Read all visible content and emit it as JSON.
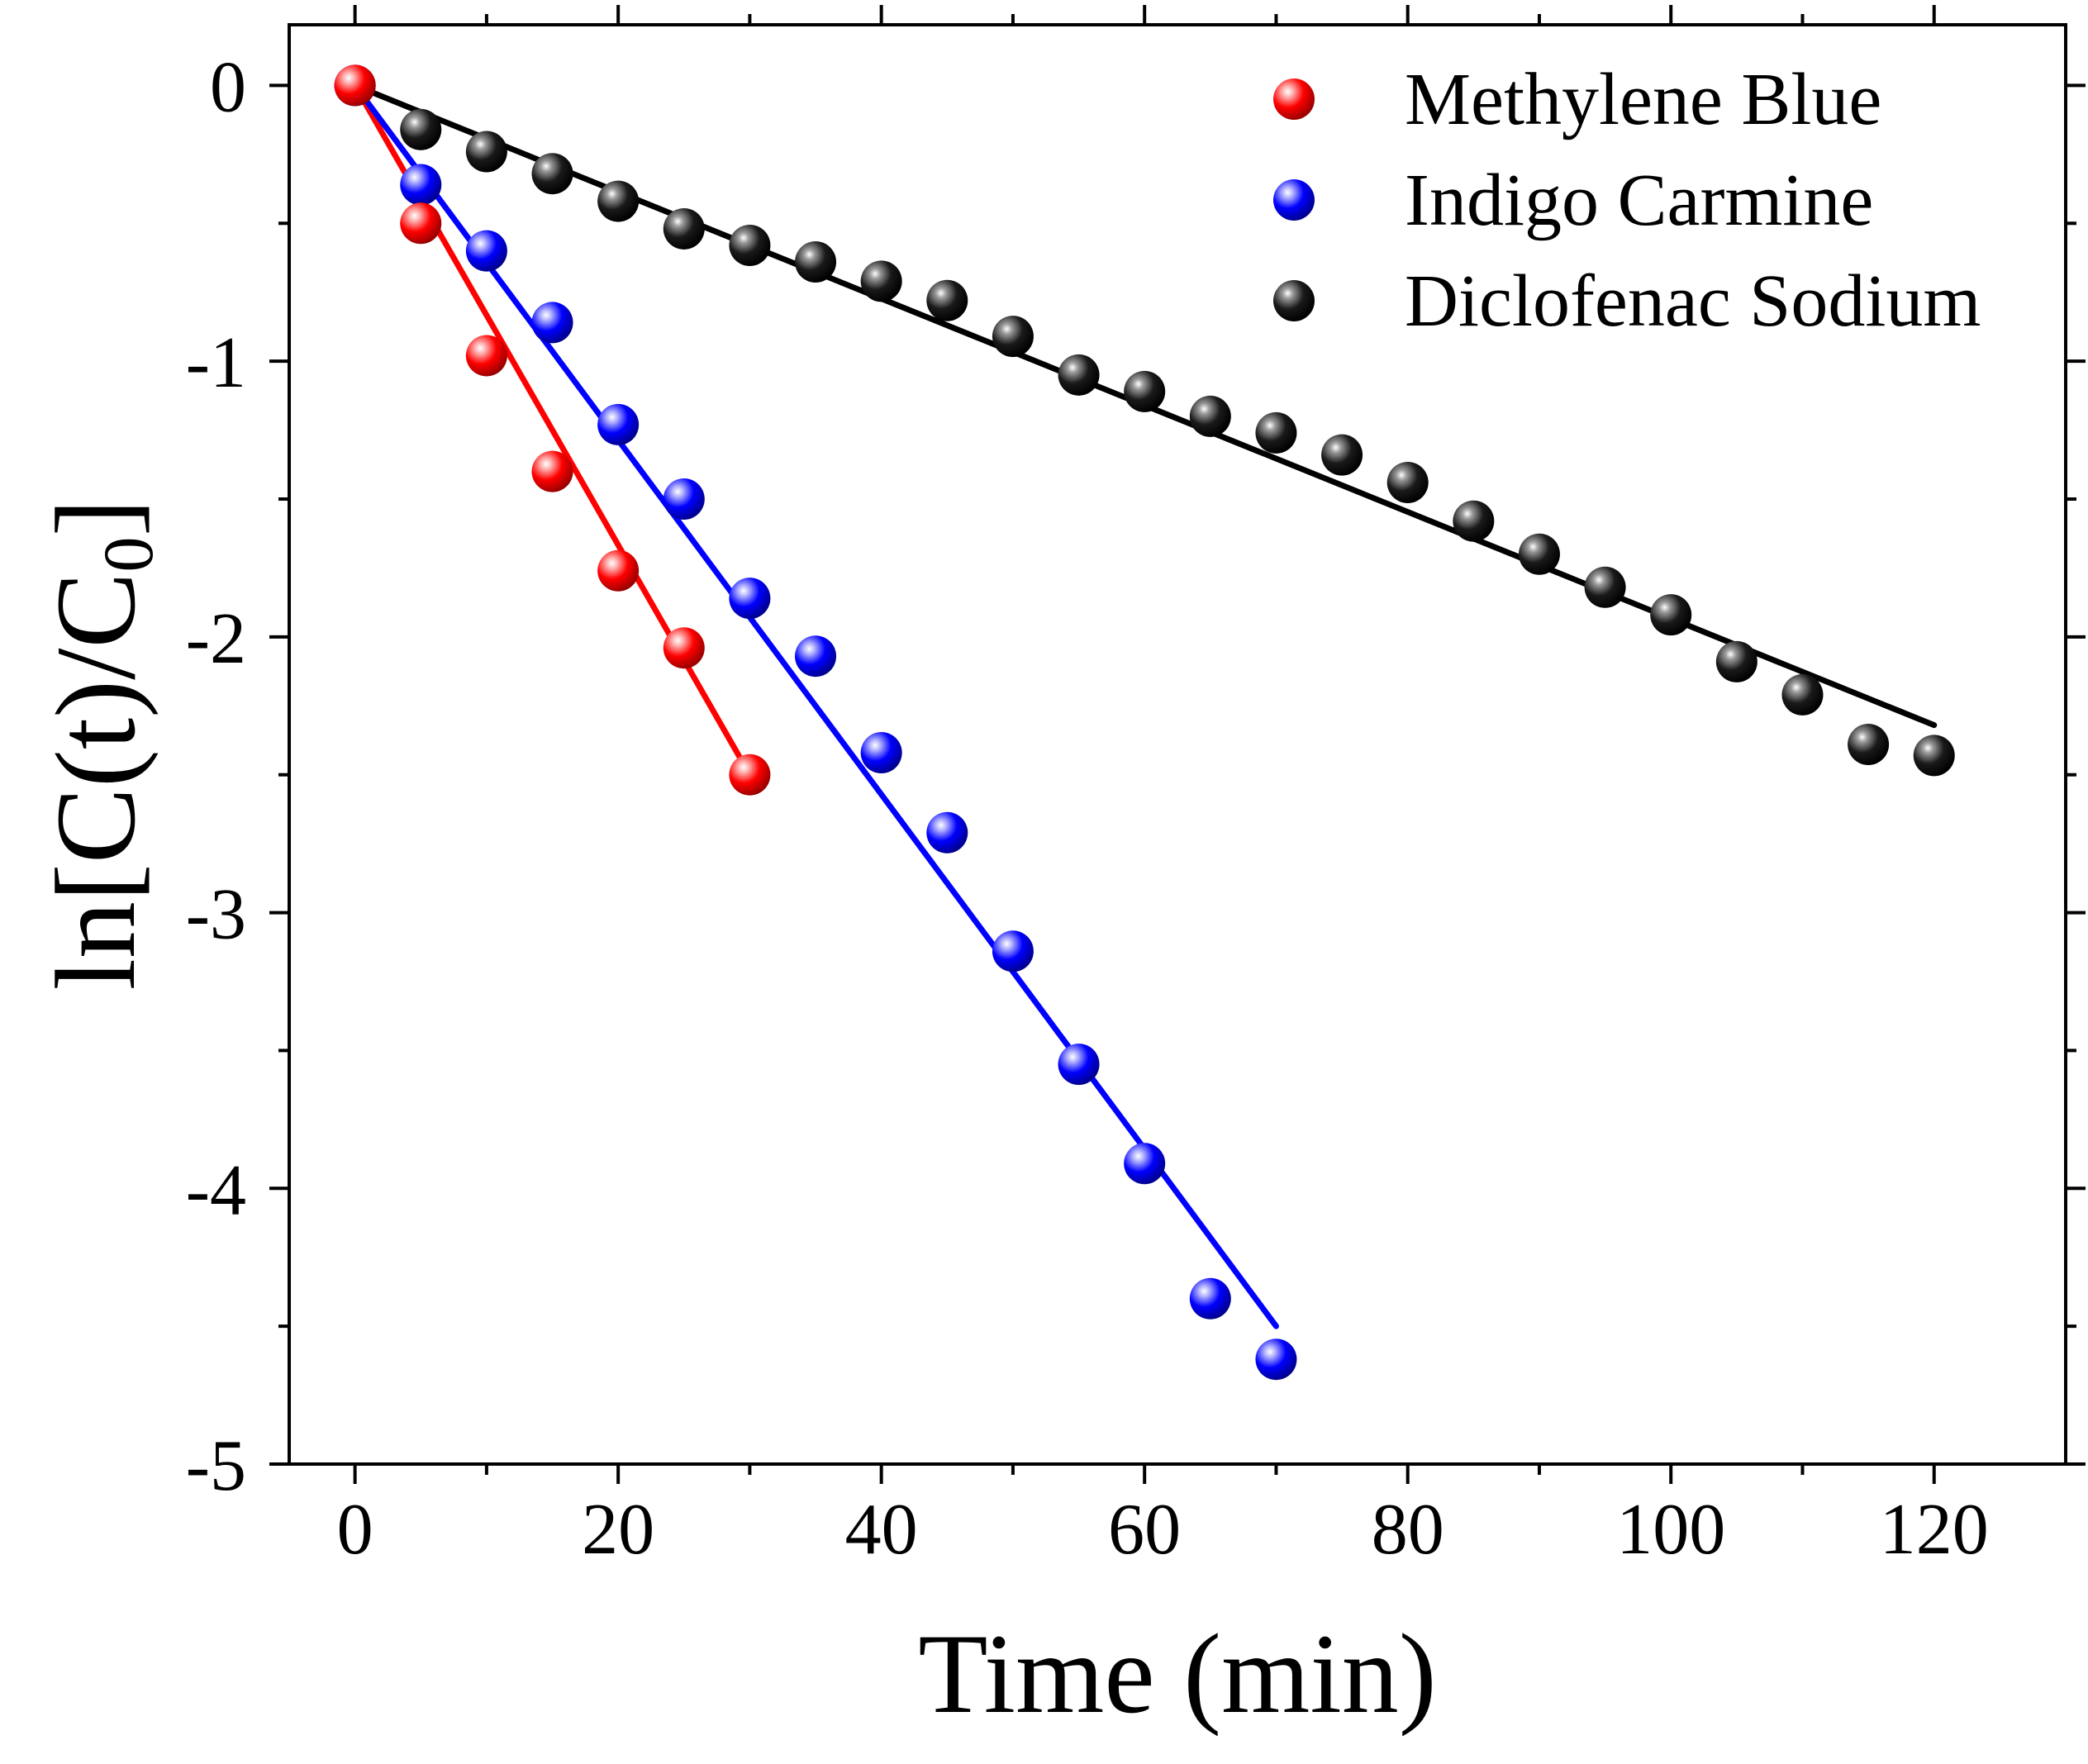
{
  "chart_data": {
    "type": "scatter",
    "xlabel": "Time (min)",
    "ylabel": {
      "main": "ln[C(t)/C",
      "subscript": "0",
      "close": "]"
    },
    "xlim": [
      -5,
      130
    ],
    "ylim": [
      -5,
      0.22
    ],
    "x_ticks": [
      0,
      20,
      40,
      60,
      80,
      100,
      120
    ],
    "x_tick_labels": [
      "0",
      "20",
      "40",
      "60",
      "80",
      "100",
      "120"
    ],
    "y_ticks": [
      0,
      -1,
      -2,
      -3,
      -4,
      -5
    ],
    "y_tick_labels": [
      "0",
      "-1",
      "-2",
      "-3",
      "-4",
      "-5"
    ],
    "legend_position": "top-right",
    "series": [
      {
        "name": "Methylene Blue",
        "color": "#ff0000",
        "x": [
          0,
          5,
          10,
          15,
          20,
          25,
          30
        ],
        "y": [
          0,
          -0.5,
          -0.98,
          -1.4,
          -1.76,
          -2.04,
          -2.5
        ],
        "fit": {
          "x": [
            0,
            30
          ],
          "y": [
            0,
            -2.5
          ]
        }
      },
      {
        "name": "Indigo Carmine",
        "color": "#0000ff",
        "x": [
          0,
          5,
          10,
          15,
          20,
          25,
          30,
          35,
          40,
          45,
          50,
          55,
          60,
          65,
          70
        ],
        "y": [
          0,
          -0.36,
          -0.6,
          -0.86,
          -1.23,
          -1.5,
          -1.86,
          -2.07,
          -2.42,
          -2.71,
          -3.14,
          -3.55,
          -3.91,
          -4.4,
          -4.62
        ],
        "fit": {
          "x": [
            0,
            70
          ],
          "y": [
            0,
            -4.5
          ]
        }
      },
      {
        "name": "Diclofenac Sodium",
        "color": "#000000",
        "x": [
          0,
          5,
          10,
          15,
          20,
          25,
          30,
          35,
          40,
          45,
          50,
          55,
          60,
          65,
          70,
          75,
          80,
          85,
          90,
          95,
          100,
          105,
          110,
          115,
          120
        ],
        "y": [
          0,
          -0.16,
          -0.24,
          -0.32,
          -0.42,
          -0.52,
          -0.58,
          -0.64,
          -0.71,
          -0.78,
          -0.91,
          -1.05,
          -1.11,
          -1.2,
          -1.26,
          -1.34,
          -1.44,
          -1.58,
          -1.7,
          -1.82,
          -1.92,
          -2.09,
          -2.21,
          -2.39,
          -2.43
        ],
        "fit": {
          "x": [
            0,
            120
          ],
          "y": [
            0,
            -2.32
          ]
        }
      }
    ]
  }
}
